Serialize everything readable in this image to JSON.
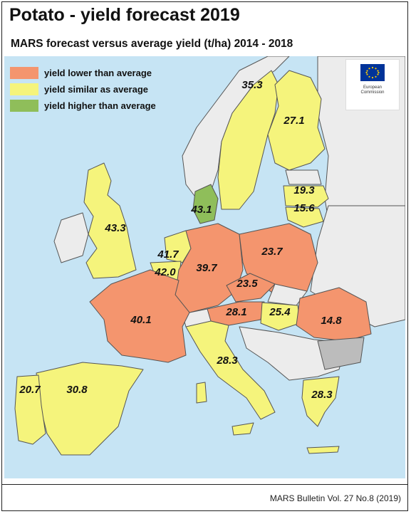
{
  "header": {
    "title": "Potato - yield forecast 2019",
    "subtitle": "MARS forecast versus average yield (t/ha) 2014 - 2018"
  },
  "legend": {
    "items": [
      {
        "label": "yield lower than average",
        "color": "#f4956e"
      },
      {
        "label": "yield similar as average",
        "color": "#f5f47c"
      },
      {
        "label": "yield higher than average",
        "color": "#8fbe5a"
      }
    ]
  },
  "logo": {
    "icon": "eu-flag-icon",
    "text_line1": "European",
    "text_line2": "Commission"
  },
  "colors": {
    "sea": "#c6e4f4",
    "no_data": "#bcbcbc",
    "non_eu": "#ececec"
  },
  "map_values": {
    "sweden": "35.3",
    "finland": "27.1",
    "latvia": "19.3",
    "lithuania": "15.6",
    "denmark": "43.1",
    "uk": "43.3",
    "netherlands": "41.7",
    "belgium": "42.0",
    "germany": "39.7",
    "poland": "23.7",
    "czechia": "23.5",
    "austria": "28.1",
    "hungary": "25.4",
    "romania": "14.8",
    "france": "40.1",
    "italy": "28.3",
    "portugal": "20.7",
    "spain": "30.8",
    "greece": "28.3"
  },
  "footer": {
    "source": "MARS Bulletin Vol. 27 No.8 (2019)"
  }
}
